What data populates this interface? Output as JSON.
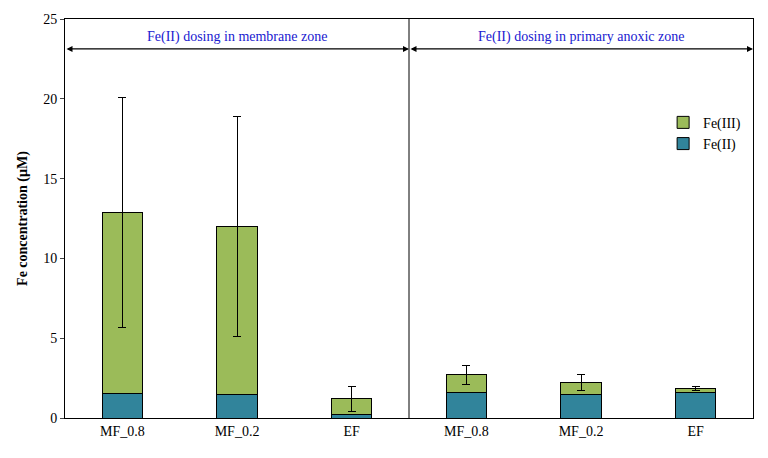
{
  "chart_data": {
    "type": "bar",
    "stacked": true,
    "y_label": "Fe concentration (µM)",
    "categories": [
      "MF_0.8",
      "MF_0.2",
      "EF",
      "MF_0.8",
      "MF_0.2",
      "EF"
    ],
    "series": [
      {
        "name": "Fe(II)",
        "color": "#31849B",
        "values": [
          1.55,
          1.5,
          0.2,
          1.6,
          1.5,
          1.6
        ]
      },
      {
        "name": "Fe(III)",
        "color": "#9BBB59",
        "values": [
          11.35,
          10.5,
          1.0,
          1.1,
          0.75,
          0.25
        ],
        "error_plus": [
          7.2,
          6.9,
          0.75,
          0.6,
          0.5,
          0.15
        ],
        "error_minus": [
          7.2,
          6.9,
          0.8,
          0.6,
          0.5,
          0.15
        ]
      }
    ],
    "annotations": [
      "Fe(II) dosing in membrane zone",
      "Fe(II) dosing in primary anoxic zone"
    ],
    "ylim": [
      0,
      25
    ],
    "yticks": [
      0,
      5,
      10,
      15,
      20,
      25
    ],
    "grid": false,
    "legend": "upper right"
  }
}
